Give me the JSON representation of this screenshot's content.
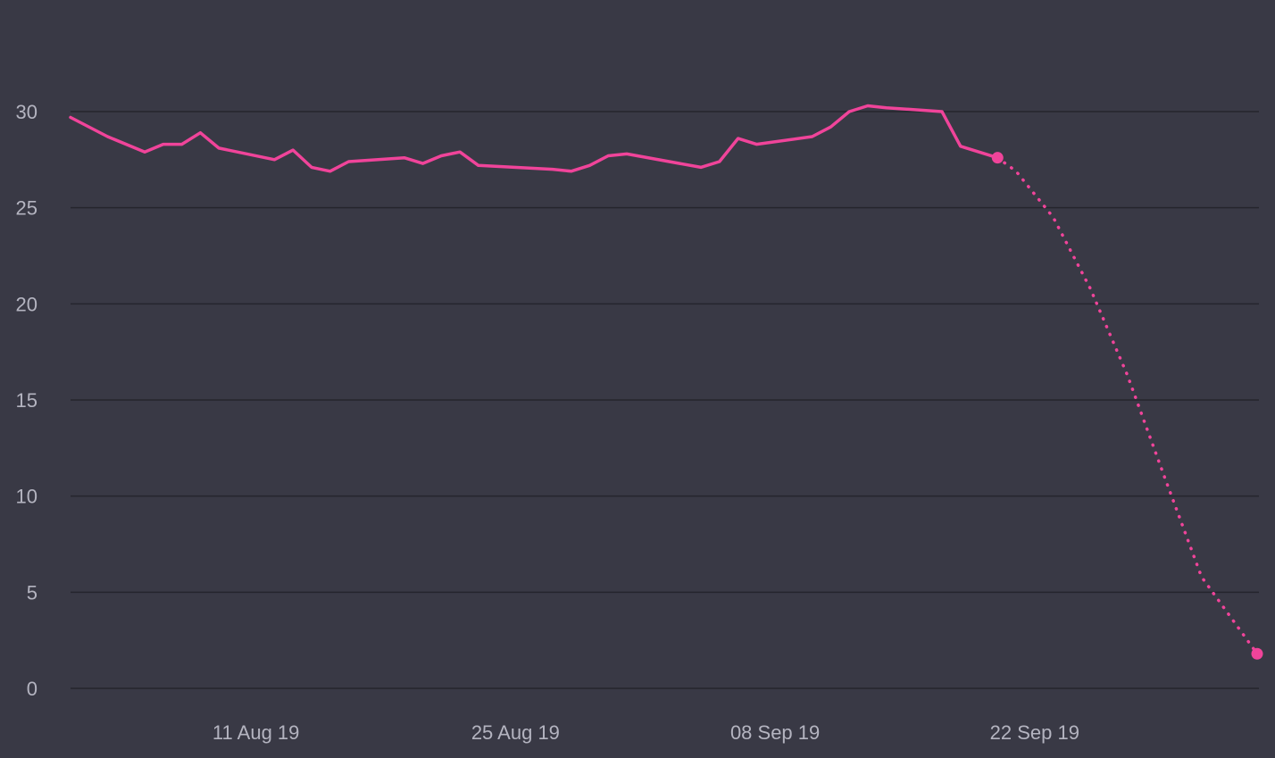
{
  "chart_data": {
    "type": "line",
    "title": "",
    "xlabel": "",
    "ylabel": "",
    "x_domain": [
      "2019-08-01",
      "2019-10-04"
    ],
    "ylim": [
      0,
      30.5
    ],
    "y_ticks": [
      0,
      5,
      10,
      15,
      20,
      25,
      30
    ],
    "x_ticks": [
      {
        "date": "2019-08-11",
        "label": "11 Aug 19"
      },
      {
        "date": "2019-08-25",
        "label": "25 Aug 19"
      },
      {
        "date": "2019-09-08",
        "label": "08 Sep 19"
      },
      {
        "date": "2019-09-22",
        "label": "22 Sep 19"
      }
    ],
    "grid": true,
    "colors": {
      "background": "#393945",
      "line": "#f0449a",
      "grid": "#25252d",
      "text": "#b4b4c0"
    },
    "series": [
      {
        "style": "solid",
        "points": [
          [
            "2019-08-01",
            29.7
          ],
          [
            "2019-08-03",
            28.7
          ],
          [
            "2019-08-05",
            27.9
          ],
          [
            "2019-08-06",
            28.3
          ],
          [
            "2019-08-07",
            28.3
          ],
          [
            "2019-08-08",
            28.9
          ],
          [
            "2019-08-09",
            28.1
          ],
          [
            "2019-08-12",
            27.5
          ],
          [
            "2019-08-13",
            28.0
          ],
          [
            "2019-08-14",
            27.1
          ],
          [
            "2019-08-15",
            26.9
          ],
          [
            "2019-08-16",
            27.4
          ],
          [
            "2019-08-19",
            27.6
          ],
          [
            "2019-08-20",
            27.3
          ],
          [
            "2019-08-21",
            27.7
          ],
          [
            "2019-08-22",
            27.9
          ],
          [
            "2019-08-23",
            27.2
          ],
          [
            "2019-08-27",
            27.0
          ],
          [
            "2019-08-28",
            26.9
          ],
          [
            "2019-08-29",
            27.2
          ],
          [
            "2019-08-30",
            27.7
          ],
          [
            "2019-08-31",
            27.8
          ],
          [
            "2019-09-04",
            27.1
          ],
          [
            "2019-09-05",
            27.4
          ],
          [
            "2019-09-06",
            28.6
          ],
          [
            "2019-09-07",
            28.3
          ],
          [
            "2019-09-10",
            28.7
          ],
          [
            "2019-09-11",
            29.2
          ],
          [
            "2019-09-12",
            30.0
          ],
          [
            "2019-09-13",
            30.3
          ],
          [
            "2019-09-14",
            30.2
          ],
          [
            "2019-09-17",
            30.0
          ],
          [
            "2019-09-18",
            28.2
          ],
          [
            "2019-09-20",
            27.6
          ]
        ]
      },
      {
        "style": "dotted",
        "points": [
          [
            "2019-09-20",
            27.6
          ],
          [
            "2019-09-21",
            26.9
          ],
          [
            "2019-09-23",
            24.5
          ],
          [
            "2019-09-25",
            20.8
          ],
          [
            "2019-09-27",
            16.3
          ],
          [
            "2019-09-29",
            11.0
          ],
          [
            "2019-10-01",
            5.8
          ],
          [
            "2019-10-04",
            1.8
          ]
        ],
        "end_markers": true
      }
    ]
  }
}
